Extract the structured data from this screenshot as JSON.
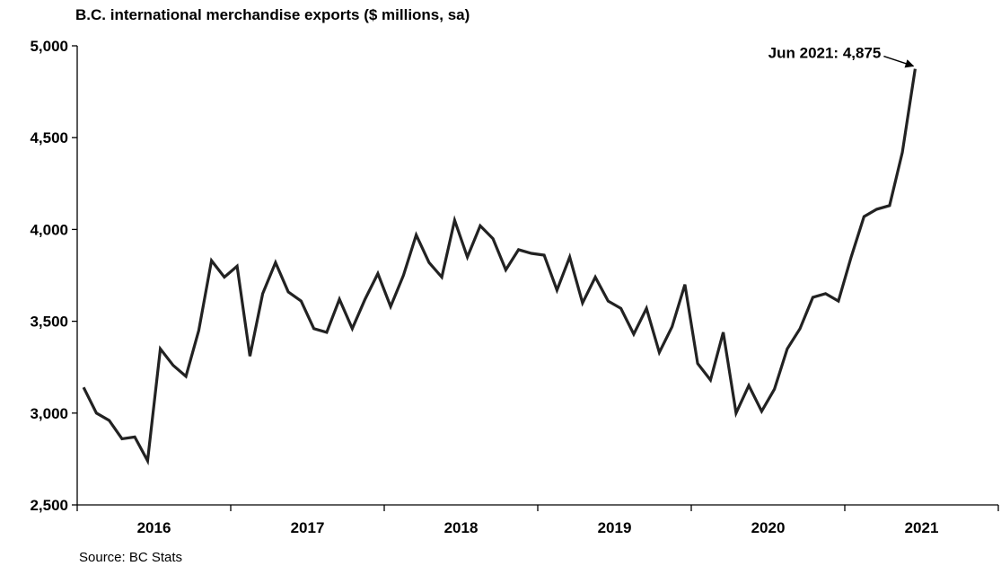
{
  "chart_data": {
    "type": "line",
    "title": "B.C. international merchandise exports ($ millions, sa)",
    "source": "Source: BC Stats",
    "ylim": [
      2500,
      5000
    ],
    "yticks": [
      2500,
      3000,
      3500,
      4000,
      4500,
      5000
    ],
    "ytick_labels": [
      "2,500",
      "3,000",
      "3,500",
      "4,000",
      "4,500",
      "5,000"
    ],
    "xlim_months": [
      "2016-01",
      "2021-12"
    ],
    "year_labels": [
      "2016",
      "2017",
      "2018",
      "2019",
      "2020",
      "2021"
    ],
    "grid": false,
    "line_color": "#222222",
    "annotation": {
      "text": "Jun 2021: 4,875",
      "month": "2021-06",
      "value": 4875
    },
    "series": [
      {
        "start_month": "2016-01",
        "values": [
          3140,
          3000,
          2960,
          2860,
          2870,
          2740,
          3350,
          3260,
          3200,
          3450,
          3830,
          3740,
          3800,
          3310,
          3650,
          3820,
          3660,
          3610,
          3460,
          3440,
          3620,
          3460,
          3620,
          3760,
          3580,
          3750,
          3970,
          3820,
          3740,
          4050,
          3850,
          4020,
          3950,
          3780,
          3890,
          3870,
          3860,
          3670,
          3850,
          3600,
          3740,
          3610,
          3570,
          3430,
          3570,
          3330,
          3470,
          3700,
          3270,
          3180,
          3440,
          3000,
          3150,
          3010,
          3130,
          3350,
          3460,
          3630,
          3650,
          3610,
          3850,
          4070,
          4110,
          4130,
          4420,
          4875
        ]
      }
    ]
  }
}
